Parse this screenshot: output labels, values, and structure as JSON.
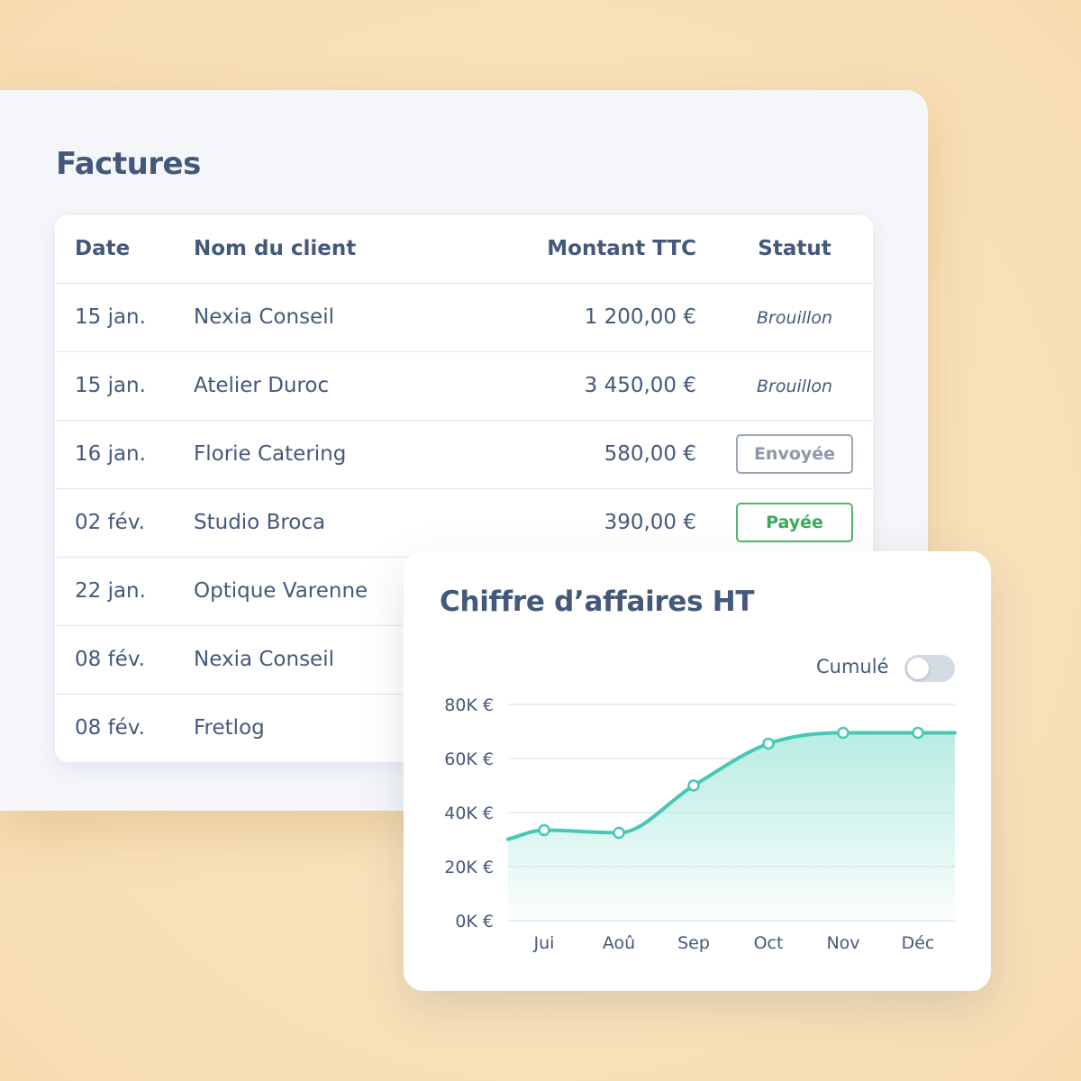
{
  "invoices": {
    "title": "Factures",
    "columns": {
      "date": "Date",
      "client": "Nom du client",
      "amount": "Montant TTC",
      "status": "Statut"
    },
    "rows": [
      {
        "date": "15 jan.",
        "client": "Nexia Conseil",
        "amount": "1 200,00 €",
        "status": "Brouillon",
        "status_type": "draft"
      },
      {
        "date": "15 jan.",
        "client": "Atelier Duroc",
        "amount": "3 450,00 €",
        "status": "Brouillon",
        "status_type": "draft"
      },
      {
        "date": "16 jan.",
        "client": "Florie Catering",
        "amount": "580,00 €",
        "status": "Envoyée",
        "status_type": "sent"
      },
      {
        "date": "02 fév.",
        "client": "Studio Broca",
        "amount": "390,00 €",
        "status": "Payée",
        "status_type": "paid"
      },
      {
        "date": "22 jan.",
        "client": "Optique Varenne"
      },
      {
        "date": "08 fév.",
        "client": "Nexia Conseil"
      },
      {
        "date": "08 fév.",
        "client": "Fretlog"
      }
    ]
  },
  "revenue": {
    "title": "Chiffre d’affaires HT",
    "toggle": {
      "label": "Cumulé",
      "on": false
    },
    "colors": {
      "line": "#45c9b6",
      "fill_top": "#b4ebe1",
      "grid": "#e3e7ed",
      "text": "#44597a"
    }
  },
  "chart_data": {
    "type": "area",
    "categories": [
      "Jui",
      "Aoû",
      "Sep",
      "Oct",
      "Nov",
      "Déc"
    ],
    "series": [
      {
        "values": [
          33500,
          32500,
          50000,
          65500,
          69500,
          69500
        ]
      }
    ],
    "ylim": [
      0,
      80000
    ],
    "yticks": [
      {
        "value": 80000,
        "label": "80K €"
      },
      {
        "value": 60000,
        "label": "60K €"
      },
      {
        "value": 40000,
        "label": "40K €"
      },
      {
        "value": 20000,
        "label": "20K €"
      },
      {
        "value": 0,
        "label": "0K €"
      }
    ],
    "grid": true,
    "legend": false
  }
}
